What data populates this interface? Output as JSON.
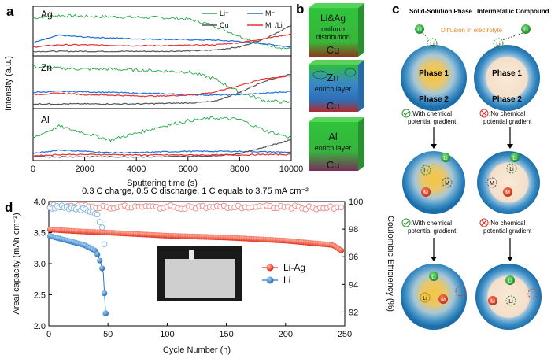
{
  "panels": {
    "a": "a",
    "b": "b",
    "c": "c",
    "d": "d"
  },
  "panel_a": {
    "ylabel": "Intensity (a.u.)",
    "xlabel": "Sputtering time (s)",
    "legend": [
      "Li⁻",
      "M⁻",
      "Cu⁻",
      "M⁻/Li⁻"
    ],
    "subplots": [
      "Ag",
      "Zn",
      "Al"
    ],
    "colors": {
      "li": "#22a845",
      "m": "#1f6fd6",
      "cu": "#555555",
      "ratio": "#e53030"
    }
  },
  "panel_b": {
    "cubes": [
      {
        "title": "Li&Ag",
        "line2": "uniform",
        "line3": "distribution",
        "bottom": "Cu"
      },
      {
        "title": "Zn",
        "line2": "enrich layer",
        "line3": "",
        "bottom": "Cu"
      },
      {
        "title": "Al",
        "line2": "enrich layer",
        "line3": "",
        "bottom": "Cu"
      }
    ]
  },
  "panel_c": {
    "col1": "Solid-Solution Phase",
    "col2": "Intermetallic Compound",
    "diffusion": "Diffusion in electrolyte",
    "phase1": "Phase 1",
    "phase2": "Phase 2",
    "with1": "With chemical",
    "with2": "potential gradient",
    "no1": "No chemical",
    "no2": "potential gradient",
    "with_mid": ":With chemical",
    "no_mid": ":No chemical",
    "li": "Li",
    "m": "M"
  },
  "panel_d": {
    "title": "0.3 C charge, 0.5 C discharge, 1 C equals to 3.75 mA cm⁻²",
    "xlabel": "Cycle Number (n)",
    "ylabel_left": "Areal capacity (mAh cm⁻²)",
    "ylabel_right": "Coulombic Efficiency (%)",
    "legend": [
      "Li-Ag",
      "Li"
    ]
  },
  "chart_data": [
    {
      "type": "line",
      "title": "Ag",
      "xlabel": "Sputtering time (s)",
      "ylabel": "Intensity (a.u.)",
      "xlim": [
        0,
        10000
      ],
      "x_ticks": [
        0,
        2000,
        4000,
        6000,
        8000,
        10000
      ],
      "x": [
        0,
        1000,
        2000,
        3000,
        4000,
        5000,
        6000,
        7000,
        8000,
        9000,
        10000
      ],
      "series": [
        {
          "name": "Li⁻",
          "values": [
            0.82,
            0.88,
            0.86,
            0.85,
            0.84,
            0.83,
            0.8,
            0.65,
            0.4,
            0.2,
            0.1
          ]
        },
        {
          "name": "M⁻",
          "values": [
            0.25,
            0.42,
            0.38,
            0.36,
            0.34,
            0.33,
            0.32,
            0.31,
            0.28,
            0.22,
            0.15
          ]
        },
        {
          "name": "Cu⁻",
          "values": [
            0.05,
            0.05,
            0.05,
            0.05,
            0.05,
            0.05,
            0.06,
            0.08,
            0.15,
            0.35,
            0.65
          ]
        },
        {
          "name": "M⁻/Li⁻",
          "values": [
            0.15,
            0.2,
            0.2,
            0.19,
            0.18,
            0.18,
            0.19,
            0.2,
            0.25,
            0.35,
            0.45
          ]
        }
      ]
    },
    {
      "type": "line",
      "title": "Zn",
      "xlim": [
        0,
        10000
      ],
      "x": [
        0,
        1000,
        2000,
        3000,
        4000,
        5000,
        6000,
        7000,
        8000,
        9000,
        10000
      ],
      "series": [
        {
          "name": "Li⁻",
          "values": [
            0.85,
            0.82,
            0.8,
            0.8,
            0.78,
            0.76,
            0.74,
            0.6,
            0.3,
            0.12,
            0.08
          ]
        },
        {
          "name": "M⁻",
          "values": [
            0.3,
            0.32,
            0.31,
            0.3,
            0.28,
            0.27,
            0.25,
            0.24,
            0.25,
            0.28,
            0.32
          ]
        },
        {
          "name": "Cu⁻",
          "values": [
            0.05,
            0.05,
            0.05,
            0.05,
            0.05,
            0.06,
            0.07,
            0.1,
            0.3,
            0.55,
            0.7
          ]
        },
        {
          "name": "M⁻/Li⁻",
          "values": [
            0.25,
            0.28,
            0.25,
            0.24,
            0.22,
            0.22,
            0.24,
            0.3,
            0.45,
            0.6,
            0.65
          ]
        }
      ]
    },
    {
      "type": "line",
      "title": "Al",
      "xlim": [
        0,
        10000
      ],
      "x": [
        0,
        1000,
        2000,
        3000,
        4000,
        5000,
        6000,
        7000,
        8000,
        9000,
        10000
      ],
      "series": [
        {
          "name": "Li⁻",
          "values": [
            0.45,
            0.7,
            0.55,
            0.4,
            0.55,
            0.7,
            0.82,
            0.88,
            0.85,
            0.6,
            0.45
          ]
        },
        {
          "name": "M⁻",
          "values": [
            0.1,
            0.18,
            0.15,
            0.12,
            0.12,
            0.14,
            0.15,
            0.15,
            0.15,
            0.14,
            0.13
          ]
        },
        {
          "name": "Cu⁻",
          "values": [
            0.03,
            0.03,
            0.03,
            0.03,
            0.03,
            0.03,
            0.04,
            0.05,
            0.1,
            0.25,
            0.4
          ]
        },
        {
          "name": "M⁻/Li⁻",
          "values": [
            0.05,
            0.08,
            0.08,
            0.08,
            0.07,
            0.07,
            0.07,
            0.07,
            0.07,
            0.08,
            0.08
          ]
        }
      ]
    },
    {
      "type": "scatter",
      "title": "0.3 C charge, 0.5 C discharge, 1 C equals to 3.75 mA cm⁻²",
      "xlabel": "Cycle Number (n)",
      "ylabel": "Areal capacity (mAh cm⁻²)",
      "y2label": "Coulombic Efficiency (%)",
      "xlim": [
        0,
        250
      ],
      "ylim": [
        2.0,
        4.0
      ],
      "y2lim": [
        91,
        100
      ],
      "x_ticks": [
        0,
        50,
        100,
        150,
        200,
        250
      ],
      "y_ticks": [
        2.0,
        2.5,
        3.0,
        3.5,
        4.0
      ],
      "y2_ticks": [
        92,
        94,
        96,
        98,
        100
      ],
      "series": [
        {
          "name": "Li-Ag",
          "axis": "left",
          "x": [
            0,
            25,
            50,
            100,
            150,
            200,
            240,
            248
          ],
          "y": [
            3.55,
            3.52,
            3.5,
            3.45,
            3.42,
            3.37,
            3.3,
            3.2
          ]
        },
        {
          "name": "Li",
          "axis": "left",
          "x": [
            0,
            10,
            20,
            30,
            40,
            44,
            46,
            48
          ],
          "y": [
            3.45,
            3.4,
            3.35,
            3.3,
            3.2,
            3.0,
            2.85,
            2.2
          ]
        },
        {
          "name": "Li-Ag CE",
          "axis": "right",
          "x": [
            0,
            50,
            100,
            150,
            200,
            250
          ],
          "y": [
            99.7,
            99.6,
            99.6,
            99.6,
            99.6,
            99.5
          ]
        },
        {
          "name": "Li CE",
          "axis": "right",
          "x": [
            0,
            10,
            20,
            30,
            40,
            45,
            48
          ],
          "y": [
            99.5,
            99.6,
            99.5,
            99.4,
            99.2,
            98.0,
            96.5
          ]
        }
      ]
    }
  ]
}
